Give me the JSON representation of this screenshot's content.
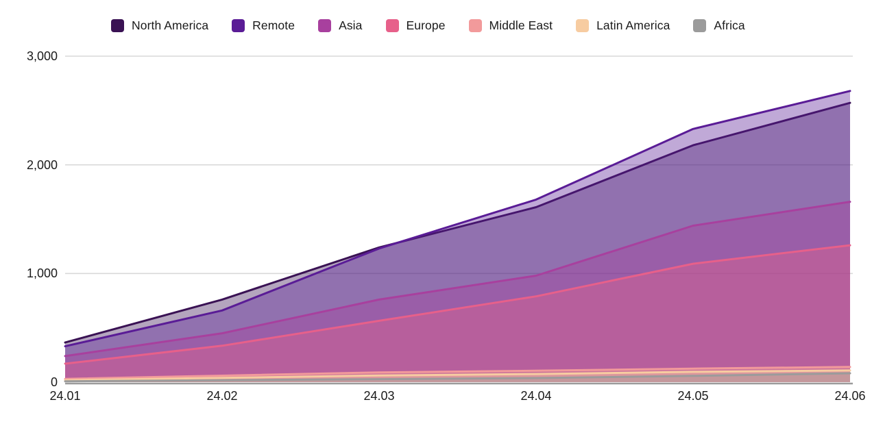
{
  "chart_data": {
    "type": "area",
    "title": "",
    "xlabel": "",
    "ylabel": "",
    "x_categories": [
      "24.01",
      "24.02",
      "24.03",
      "24.04",
      "24.05",
      "24.06"
    ],
    "series": [
      {
        "name": "North America",
        "color": "#3A1254",
        "values": [
          365,
          760,
          1240,
          1610,
          2180,
          2570
        ]
      },
      {
        "name": "Remote",
        "color": "#5A1C96",
        "values": [
          330,
          660,
          1230,
          1680,
          2330,
          2680
        ]
      },
      {
        "name": "Asia",
        "color": "#A8409E",
        "values": [
          240,
          450,
          760,
          980,
          1440,
          1660
        ]
      },
      {
        "name": "Europe",
        "color": "#E7608A",
        "values": [
          170,
          335,
          565,
          790,
          1090,
          1260
        ]
      },
      {
        "name": "Middle East",
        "color": "#F29A9B",
        "values": [
          30,
          60,
          90,
          105,
          125,
          140
        ]
      },
      {
        "name": "Latin America",
        "color": "#F7CCA1",
        "values": [
          18,
          40,
          62,
          75,
          95,
          108
        ]
      },
      {
        "name": "Africa",
        "color": "#9B9B9B",
        "values": [
          8,
          18,
          28,
          38,
          58,
          82
        ]
      }
    ],
    "y_ticks": [
      {
        "label": "0",
        "value": 0
      },
      {
        "label": "1,000",
        "value": 1000
      },
      {
        "label": "2,000",
        "value": 2000
      },
      {
        "label": "3,000",
        "value": 3000
      }
    ],
    "ylim": [
      0,
      3000
    ],
    "grid": true,
    "legend_position": "top",
    "fill_opacity": 0.38,
    "line_width": 3,
    "colors": {
      "gridline": "#d8d8d8",
      "axis_line": "#9b9b9b",
      "text": "#1a1a1a",
      "background": "#ffffff"
    }
  }
}
